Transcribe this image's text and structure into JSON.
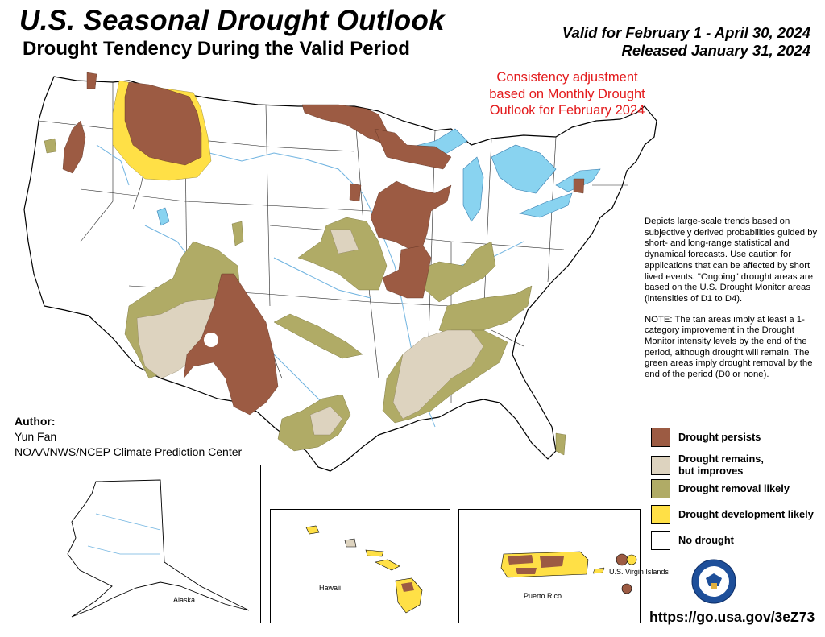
{
  "header": {
    "title": "U.S. Seasonal Drought Outlook",
    "subtitle": "Drought Tendency During the Valid Period",
    "valid": "Valid for February 1 - April 30, 2024",
    "released": "Released January 31, 2024"
  },
  "consistency_note": "Consistency adjustment based on Monthly Drought Outlook for February 2024",
  "description": {
    "p1": "Depicts large-scale trends based on subjectively derived probabilities guided by short- and long-range statistical and dynamical forecasts. Use caution for applications that can be affected by short lived events. \"Ongoing\" drought areas are based on the U.S. Drought Monitor areas (intensities of D1 to D4).",
    "p2": "NOTE: The tan areas imply at least a 1-category improvement in the Drought Monitor intensity levels by the end of the period, although drought will remain. The green areas imply drought removal by the end of the period (D0 or none)."
  },
  "author": {
    "heading": "Author:",
    "name": "Yun Fan",
    "org": "NOAA/NWS/NCEP Climate Prediction Center"
  },
  "legend": [
    {
      "label": "Drought persists",
      "color": "#9c5b43"
    },
    {
      "label": "Drought remains, but improves",
      "color": "#ddd3bf"
    },
    {
      "label": "Drought removal likely",
      "color": "#b0ab66"
    },
    {
      "label": "Drought development likely",
      "color": "#ffe046"
    },
    {
      "label": "No drought",
      "color": "#ffffff"
    }
  ],
  "insets": {
    "alaska": "Alaska",
    "hawaii": "Hawaii",
    "puerto_rico": "Puerto Rico",
    "virgin_islands": "U.S. Virgin Islands"
  },
  "url": "https://go.usa.gov/3eZ73",
  "colors": {
    "persists": "#9c5b43",
    "improves": "#ddd3bf",
    "removal": "#b0ab66",
    "development": "#ffe046",
    "water": "#89d3f0",
    "river": "#6fb3e0",
    "note_red": "#e31a1c"
  }
}
